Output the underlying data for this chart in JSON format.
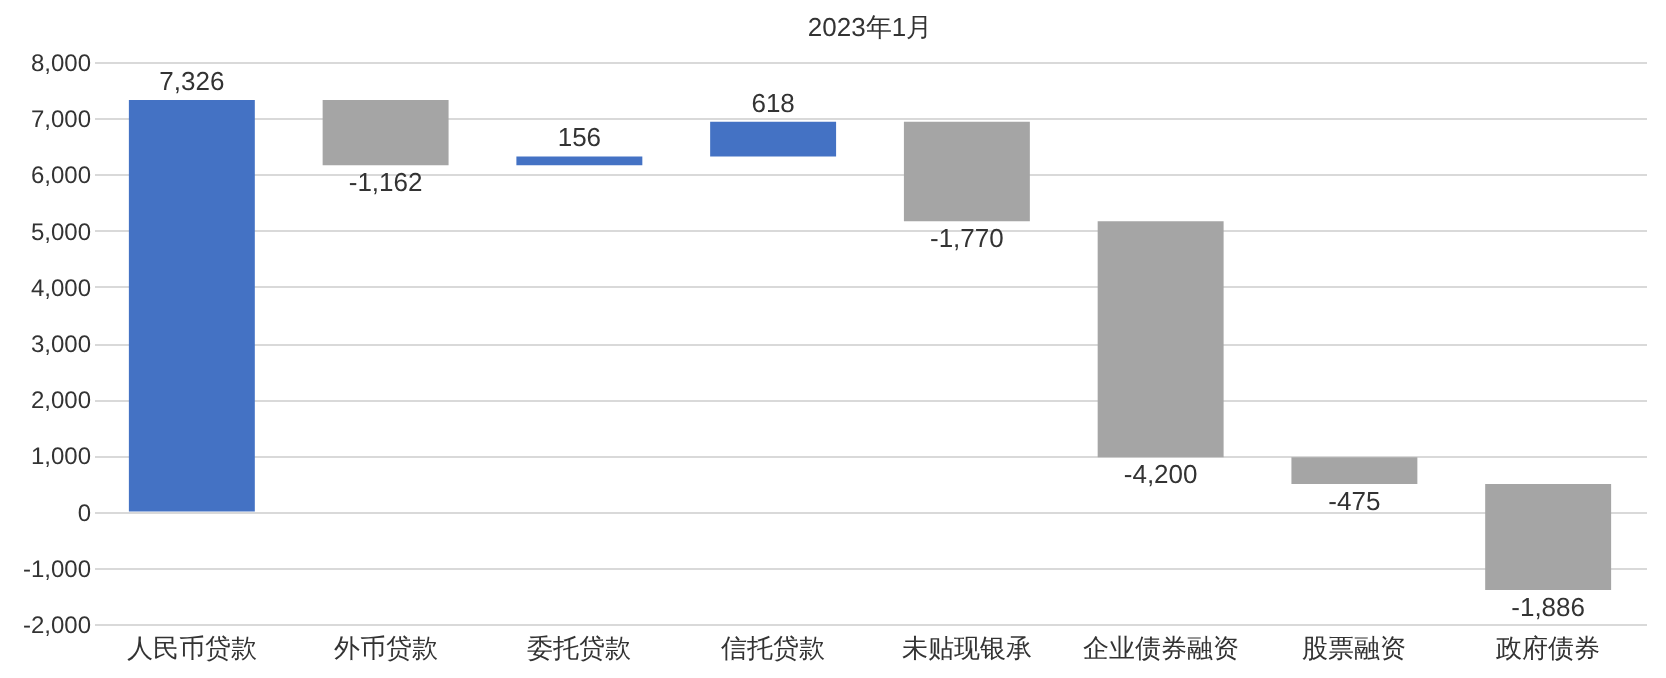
{
  "chart_data": {
    "type": "bar",
    "title": "2023年1月",
    "categories": [
      "人民币贷款",
      "外币贷款",
      "委托贷款",
      "信托贷款",
      "未贴现银承",
      "企业债券融资",
      "股票融资",
      "政府债券"
    ],
    "values": [
      7326,
      -1162,
      156,
      618,
      -1770,
      -4200,
      -475,
      -1886
    ],
    "base": [
      0,
      7326,
      6164,
      6320,
      6938,
      5168,
      968,
      493
    ],
    "colors": [
      "#4472c4",
      "#a5a5a5",
      "#4472c4",
      "#4472c4",
      "#a5a5a5",
      "#a5a5a5",
      "#a5a5a5",
      "#a5a5a5"
    ],
    "value_labels": [
      "7,326",
      "-1,162",
      "156",
      "618",
      "-1,770",
      "-4,200",
      "-475",
      "-1,886"
    ],
    "ylim": [
      -2000,
      8000
    ],
    "yticks": [
      {
        "value": -2000,
        "label": "-2,000"
      },
      {
        "value": -1000,
        "label": "-1,000"
      },
      0,
      {
        "value": 1000,
        "label": "1,000"
      },
      {
        "value": 2000,
        "label": "2,000"
      },
      {
        "value": 3000,
        "label": "3,000"
      },
      {
        "value": 4000,
        "label": "4,000"
      },
      {
        "value": 5000,
        "label": "5,000"
      },
      {
        "value": 6000,
        "label": "6,000"
      },
      {
        "value": 7000,
        "label": "7,000"
      },
      {
        "value": 8000,
        "label": "8,000"
      }
    ],
    "grid": "y",
    "legend": false
  }
}
